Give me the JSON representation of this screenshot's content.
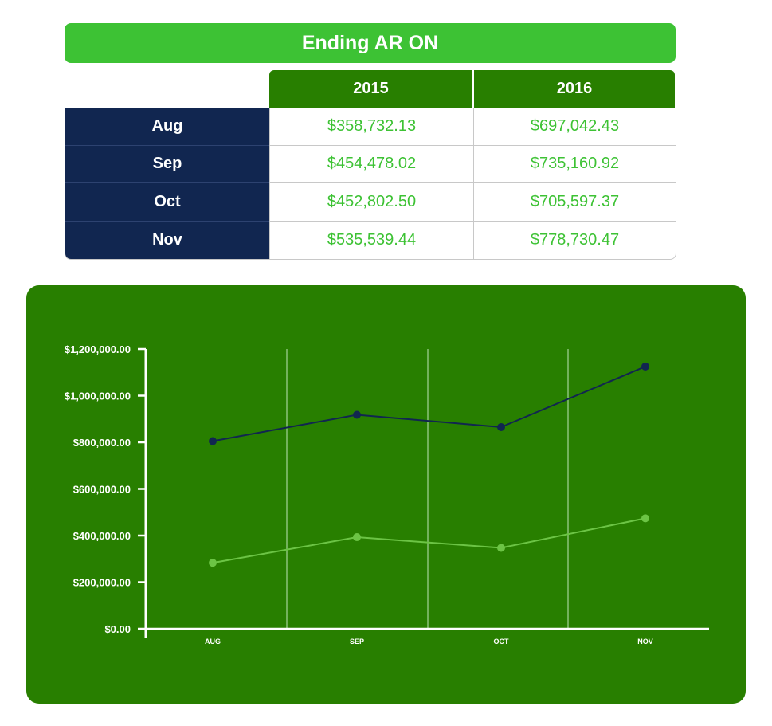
{
  "title": "Ending AR ON",
  "table": {
    "columns": [
      "2015",
      "2016"
    ],
    "rows": [
      {
        "label": "Aug",
        "v2015": "$358,732.13",
        "v2016": "$697,042.43"
      },
      {
        "label": "Sep",
        "v2015": "$454,478.02",
        "v2016": "$735,160.92"
      },
      {
        "label": "Oct",
        "v2015": "$452,802.50",
        "v2016": "$705,597.37"
      },
      {
        "label": "Nov",
        "v2015": "$535,539.44",
        "v2016": "$778,730.47"
      }
    ]
  },
  "colors": {
    "title_bg": "#3dc234",
    "header_bg": "#287f00",
    "row_label_bg": "#112650",
    "value_text": "#3dc234",
    "chart_bg": "#287f00",
    "series_dark": "#112650",
    "series_light": "#6cc445"
  },
  "chart_data": {
    "type": "line",
    "title": "",
    "xlabel": "",
    "ylabel": "",
    "categories": [
      "AUG",
      "SEP",
      "OCT",
      "NOV"
    ],
    "ylim": [
      0,
      1200000
    ],
    "yticks": [
      0,
      200000,
      400000,
      600000,
      800000,
      1000000,
      1200000
    ],
    "ytick_labels": [
      "$0.00",
      "$200,000.00",
      "$400,000.00",
      "$600,000.00",
      "$800,000.00",
      "$1,000,000.00",
      "$1,200,000.00"
    ],
    "grid": "vertical lines between categories",
    "legend": "none",
    "series": [
      {
        "color": "#112650",
        "values": [
          805000,
          918000,
          865000,
          1125000
        ]
      },
      {
        "color": "#6cc445",
        "values": [
          283000,
          393000,
          347000,
          474000
        ]
      }
    ]
  }
}
